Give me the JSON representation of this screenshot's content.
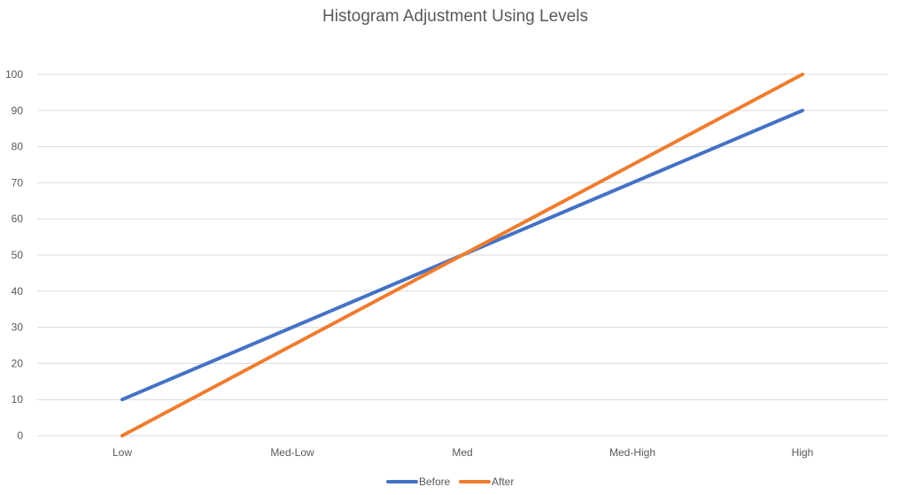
{
  "chart_data": {
    "type": "line",
    "title": "Histogram Adjustment Using Levels",
    "xlabel": "",
    "ylabel": "",
    "categories": [
      "Low",
      "Med-Low",
      "Med",
      "Med-High",
      "High"
    ],
    "ylim": [
      0,
      100
    ],
    "yticks": [
      0,
      10,
      20,
      30,
      40,
      50,
      60,
      70,
      80,
      90,
      100
    ],
    "grid": true,
    "legend_position": "bottom",
    "series": [
      {
        "name": "Before",
        "color": "#4472c4",
        "values": [
          10,
          30,
          50,
          70,
          90
        ]
      },
      {
        "name": "After",
        "color": "#ed7d31",
        "values": [
          0,
          25,
          50,
          75,
          100
        ]
      }
    ]
  }
}
